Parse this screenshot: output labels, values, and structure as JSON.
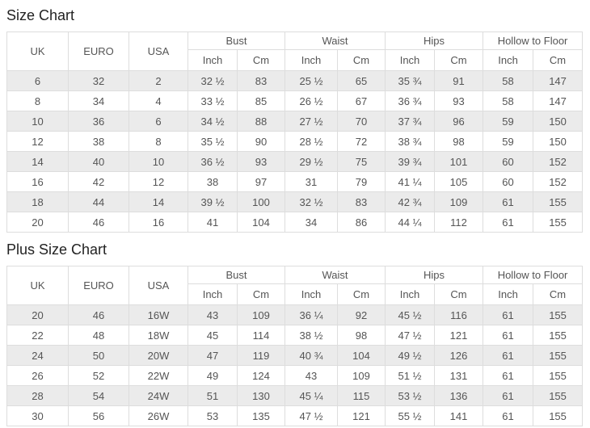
{
  "colors": {
    "stripe_row": "#ebebeb",
    "border": "#dddddd",
    "text": "#555555",
    "title_text": "#222222",
    "background": "#ffffff"
  },
  "size_chart": {
    "title": "Size Chart",
    "headers": {
      "uk": "UK",
      "euro": "EURO",
      "usa": "USA",
      "groups": [
        "Bust",
        "Waist",
        "Hips",
        "Hollow to Floor"
      ],
      "units": [
        "Inch",
        "Cm"
      ]
    },
    "rows": [
      [
        "6",
        "32",
        "2",
        "32 ½",
        "83",
        "25 ½",
        "65",
        "35 ¾",
        "91",
        "58",
        "147"
      ],
      [
        "8",
        "34",
        "4",
        "33 ½",
        "85",
        "26 ½",
        "67",
        "36 ¾",
        "93",
        "58",
        "147"
      ],
      [
        "10",
        "36",
        "6",
        "34 ½",
        "88",
        "27 ½",
        "70",
        "37 ¾",
        "96",
        "59",
        "150"
      ],
      [
        "12",
        "38",
        "8",
        "35 ½",
        "90",
        "28 ½",
        "72",
        "38 ¾",
        "98",
        "59",
        "150"
      ],
      [
        "14",
        "40",
        "10",
        "36 ½",
        "93",
        "29 ½",
        "75",
        "39 ¾",
        "101",
        "60",
        "152"
      ],
      [
        "16",
        "42",
        "12",
        "38",
        "97",
        "31",
        "79",
        "41 ¼",
        "105",
        "60",
        "152"
      ],
      [
        "18",
        "44",
        "14",
        "39 ½",
        "100",
        "32 ½",
        "83",
        "42 ¾",
        "109",
        "61",
        "155"
      ],
      [
        "20",
        "46",
        "16",
        "41",
        "104",
        "34",
        "86",
        "44 ¼",
        "112",
        "61",
        "155"
      ]
    ]
  },
  "plus_size_chart": {
    "title": "Plus Size Chart",
    "headers": {
      "uk": "UK",
      "euro": "EURO",
      "usa": "USA",
      "groups": [
        "Bust",
        "Waist",
        "Hips",
        "Hollow to Floor"
      ],
      "units": [
        "Inch",
        "Cm"
      ]
    },
    "rows": [
      [
        "20",
        "46",
        "16W",
        "43",
        "109",
        "36 ¼",
        "92",
        "45 ½",
        "116",
        "61",
        "155"
      ],
      [
        "22",
        "48",
        "18W",
        "45",
        "114",
        "38 ½",
        "98",
        "47 ½",
        "121",
        "61",
        "155"
      ],
      [
        "24",
        "50",
        "20W",
        "47",
        "119",
        "40 ¾",
        "104",
        "49 ½",
        "126",
        "61",
        "155"
      ],
      [
        "26",
        "52",
        "22W",
        "49",
        "124",
        "43",
        "109",
        "51 ½",
        "131",
        "61",
        "155"
      ],
      [
        "28",
        "54",
        "24W",
        "51",
        "130",
        "45 ¼",
        "115",
        "53 ½",
        "136",
        "61",
        "155"
      ],
      [
        "30",
        "56",
        "26W",
        "53",
        "135",
        "47 ½",
        "121",
        "55 ½",
        "141",
        "61",
        "155"
      ]
    ]
  }
}
